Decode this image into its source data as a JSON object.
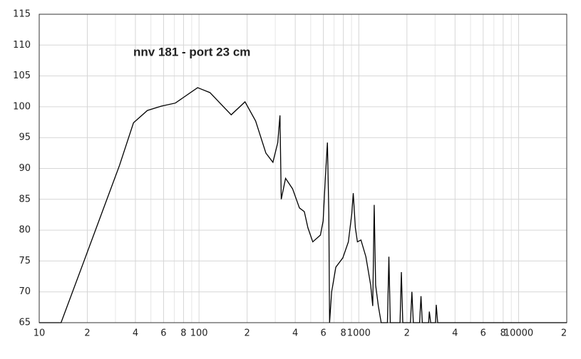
{
  "chart_data": {
    "type": "line",
    "title": "nnv 181 - port 23 cm",
    "title_color": "#1e7be0",
    "log_x": true,
    "grid": true,
    "color": "#000000",
    "xlim": [
      10,
      20000
    ],
    "ylim": [
      65,
      115
    ],
    "yticks": [
      65,
      70,
      75,
      80,
      85,
      90,
      95,
      100,
      105,
      110,
      115
    ],
    "xticks": [
      10,
      {
        "value": 20,
        "label": "2"
      },
      {
        "value": 40,
        "label": "4"
      },
      {
        "value": 60,
        "label": "6"
      },
      {
        "value": 80,
        "label": "8"
      },
      100,
      {
        "value": 200,
        "label": "2"
      },
      {
        "value": 400,
        "label": "4"
      },
      {
        "value": 600,
        "label": "6"
      },
      {
        "value": 800,
        "label": "8"
      },
      1000,
      {
        "value": 2000,
        "label": "2"
      },
      {
        "value": 4000,
        "label": "4"
      },
      {
        "value": 6000,
        "label": "6"
      },
      {
        "value": 8000,
        "label": "8"
      },
      10000,
      {
        "value": 20000,
        "label": "2"
      }
    ],
    "minor_xticks": [
      30,
      50,
      70,
      90,
      300,
      500,
      700,
      900,
      3000,
      5000,
      7000,
      9000
    ],
    "x": [
      10,
      13.7,
      19.2,
      26.0,
      31.8,
      38.9,
      47.5,
      58.1,
      71.1,
      98,
      117,
      159,
      194,
      226,
      262,
      290,
      311,
      321,
      327,
      348,
      385,
      425,
      456,
      480,
      515,
      575,
      598,
      617,
      636,
      649,
      656,
      676,
      718,
      794,
      860,
      904,
      923,
      951,
      980,
      1031,
      1107,
      1186,
      1222,
      1248,
      1274,
      1325,
      1380,
      1510,
      1542,
      1574,
      1811,
      1846,
      1884,
      2104,
      2148,
      2193,
      2400,
      2449,
      2496,
      2733,
      2762,
      2816,
      3021,
      3052,
      3115,
      20000
    ],
    "values": [
      65,
      65,
      75.2,
      84.4,
      90.5,
      97.4,
      99.4,
      100.1,
      100.6,
      103.1,
      102.3,
      98.7,
      100.8,
      97.7,
      92.5,
      91.0,
      94.2,
      98.6,
      85.0,
      88.4,
      86.7,
      83.6,
      83.0,
      80.4,
      78.1,
      79.2,
      81.5,
      88.4,
      94.2,
      82.7,
      65,
      70,
      74,
      75.5,
      78.1,
      82.7,
      86.0,
      80.4,
      78.1,
      78.4,
      75.7,
      71.1,
      67.7,
      84.1,
      71.1,
      67.7,
      65,
      65,
      75.7,
      65,
      65,
      73.2,
      65,
      65,
      70,
      65,
      65,
      69.3,
      65,
      65,
      66.8,
      65,
      65,
      67.9,
      65,
      65
    ]
  }
}
